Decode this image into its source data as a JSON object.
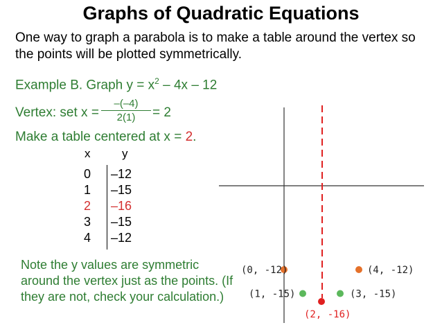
{
  "title": "Graphs of Quadratic Equations",
  "intro": "One way to graph a parabola is to make a table around the vertex so the points will be plotted symmetrically.",
  "example": {
    "prefix": "Example B. Graph y = x",
    "exp": "2",
    "suffix": " – 4x – 12"
  },
  "vertex": {
    "label": "Vertex: set  x = ",
    "numerator": "–(–4)",
    "denominator": "2(1)",
    "result": "= 2"
  },
  "make_table": {
    "text": "Make a table centered at x = ",
    "value": "2",
    "period": "."
  },
  "table": {
    "x_header": "x",
    "y_header": "y",
    "rows": [
      {
        "x": "0",
        "y": "–12"
      },
      {
        "x": "1",
        "y": "–15"
      },
      {
        "x": "2",
        "y": "–16"
      },
      {
        "x": "3",
        "y": "–15"
      },
      {
        "x": "4",
        "y": "–12"
      }
    ]
  },
  "note": "Note the y values are symmetric around the vertex just as the points. (If they are not, check your calculation.)",
  "graph": {
    "colors": {
      "orange": "#e5712a",
      "green": "#5cb85c",
      "red": "#e02020",
      "axis": "#333333",
      "dashed": "#e02020"
    },
    "points": [
      {
        "label": "(0, -12)",
        "x": 0,
        "y": -12,
        "color": "orange",
        "label_color": "#222222"
      },
      {
        "label": "(4, -12)",
        "x": 4,
        "y": -12,
        "color": "orange",
        "label_color": "#222222"
      },
      {
        "label": "(1, -15)",
        "x": 1,
        "y": -15,
        "color": "green",
        "label_color": "#222222"
      },
      {
        "label": "(3, -15)",
        "x": 3,
        "y": -15,
        "color": "green",
        "label_color": "#222222"
      },
      {
        "label": "(2, -16)",
        "x": 2,
        "y": -16,
        "color": "red",
        "label_color": "#e02020"
      }
    ]
  }
}
